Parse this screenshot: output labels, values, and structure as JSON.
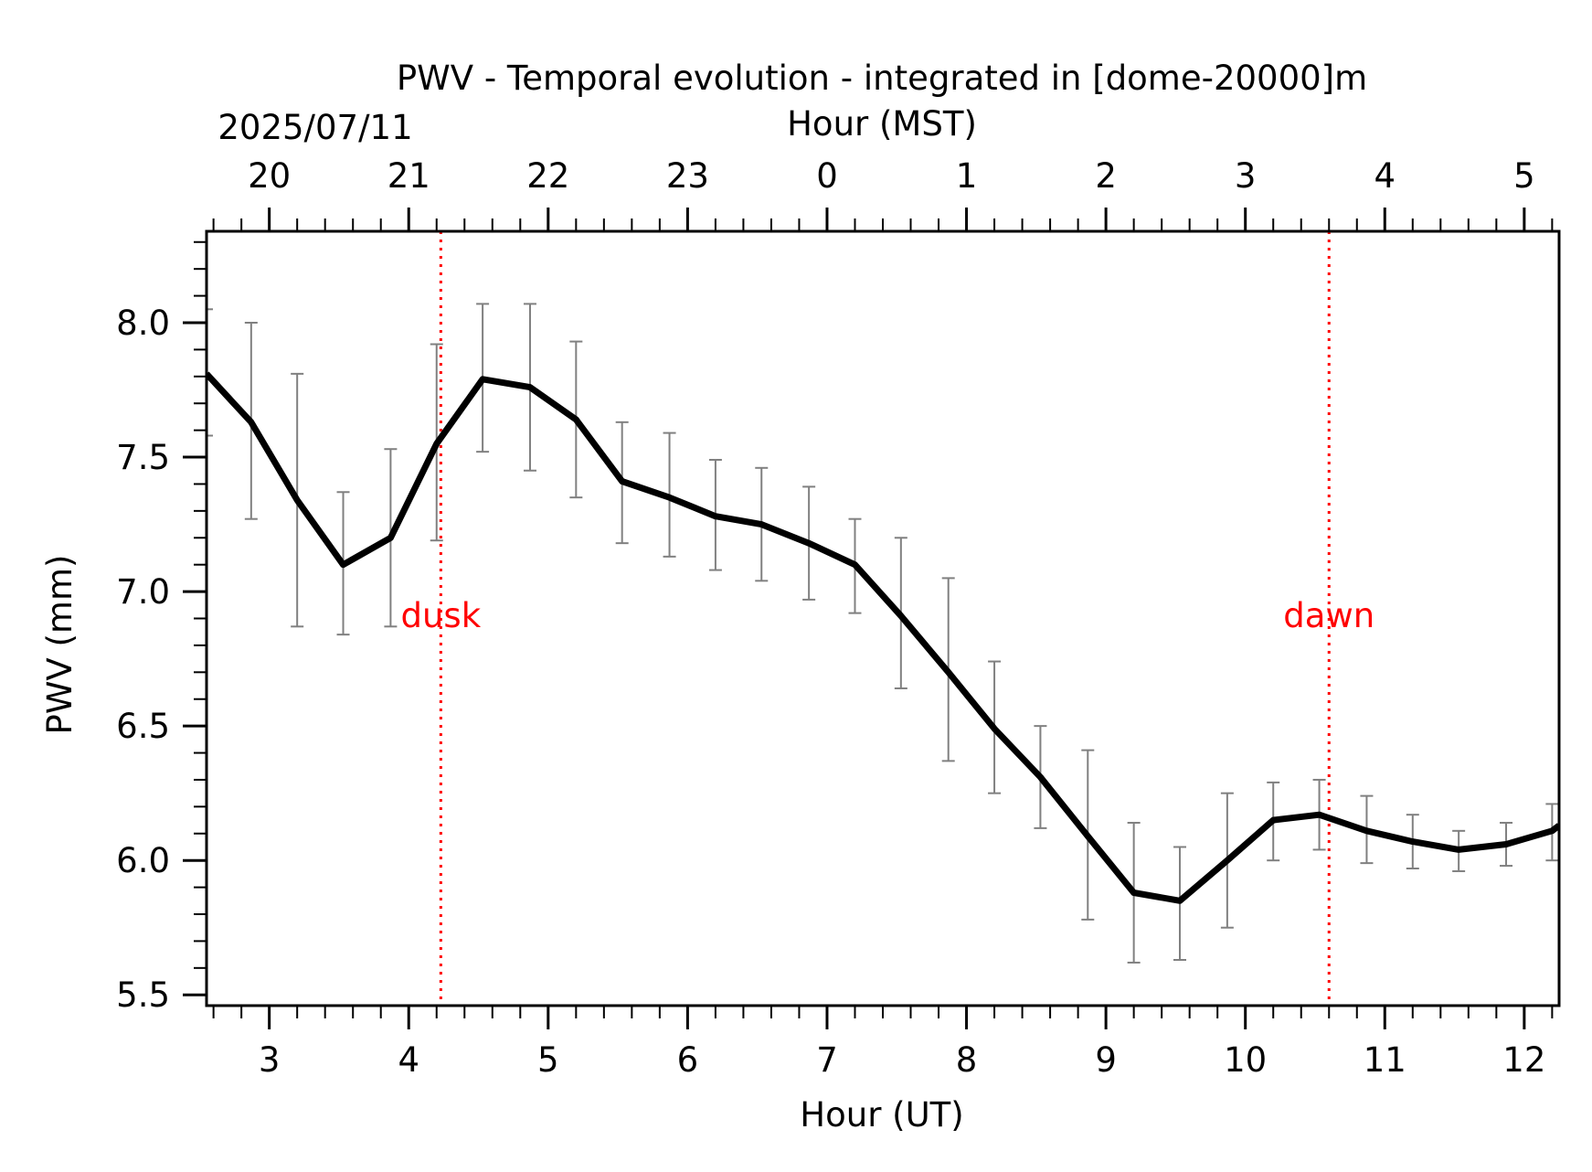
{
  "chart_data": {
    "type": "line",
    "title": "PWV - Temporal evolution - integrated in [dome-20000]m",
    "date_label": "2025/07/11",
    "xlabel": "Hour (UT)",
    "x2label": "Hour (MST)",
    "ylabel": "PWV (mm)",
    "xlim": [
      2.55,
      12.25
    ],
    "ylim": [
      5.46,
      8.34
    ],
    "x_ticks": [
      3,
      4,
      5,
      6,
      7,
      8,
      9,
      10,
      11,
      12
    ],
    "x_tick_labels": [
      "3",
      "4",
      "5",
      "6",
      "7",
      "8",
      "9",
      "10",
      "11",
      "12"
    ],
    "x2_tick_labels": [
      "20",
      "21",
      "22",
      "23",
      "0",
      "1",
      "2",
      "3",
      "4",
      "5"
    ],
    "y_ticks": [
      5.5,
      6.0,
      6.5,
      7.0,
      7.5,
      8.0
    ],
    "y_tick_labels": [
      "5.5",
      "6.0",
      "6.5",
      "7.0",
      "7.5",
      "8.0"
    ],
    "series": [
      {
        "color": "#000000",
        "error_color": "#808080",
        "x": [
          2.55,
          2.87,
          3.2,
          3.53,
          3.87,
          4.2,
          4.53,
          4.87,
          5.2,
          5.53,
          5.87,
          6.2,
          6.53,
          6.87,
          7.2,
          7.53,
          7.87,
          8.2,
          8.53,
          8.87,
          9.2,
          9.53,
          9.87,
          10.2,
          10.53,
          10.87,
          11.2,
          11.53,
          11.87,
          12.2,
          12.25
        ],
        "y": [
          7.81,
          7.63,
          7.34,
          7.1,
          7.2,
          7.55,
          7.79,
          7.76,
          7.64,
          7.41,
          7.35,
          7.28,
          7.25,
          7.18,
          7.1,
          6.91,
          6.7,
          6.49,
          6.31,
          6.09,
          5.88,
          5.85,
          6.0,
          6.15,
          6.17,
          6.11,
          6.07,
          6.04,
          6.06,
          6.11,
          6.13
        ],
        "err_x": [
          2.55,
          2.87,
          3.2,
          3.53,
          3.87,
          4.2,
          4.53,
          4.87,
          5.2,
          5.53,
          5.87,
          6.2,
          6.53,
          6.87,
          7.2,
          7.53,
          7.87,
          8.2,
          8.53,
          8.87,
          9.2,
          9.53,
          9.87,
          10.2,
          10.53,
          10.87,
          11.2,
          11.53,
          11.87,
          12.2
        ],
        "err_low": [
          7.58,
          7.27,
          6.87,
          6.84,
          6.87,
          7.19,
          7.52,
          7.45,
          7.35,
          7.18,
          7.13,
          7.08,
          7.04,
          6.97,
          6.92,
          6.64,
          6.37,
          6.25,
          6.12,
          5.78,
          5.62,
          5.63,
          5.75,
          6.0,
          6.04,
          5.99,
          5.97,
          5.96,
          5.98,
          6.0
        ],
        "err_high": [
          8.05,
          8.0,
          7.81,
          7.37,
          7.53,
          7.92,
          8.07,
          8.07,
          7.93,
          7.63,
          7.59,
          7.49,
          7.46,
          7.39,
          7.27,
          7.2,
          7.05,
          6.74,
          6.5,
          6.41,
          6.14,
          6.05,
          6.25,
          6.29,
          6.3,
          6.24,
          6.17,
          6.11,
          6.14,
          6.21
        ]
      }
    ],
    "events": [
      {
        "label": "dusk",
        "x": 4.23,
        "color": "#ff0000"
      },
      {
        "label": "dawn",
        "x": 10.6,
        "color": "#ff0000"
      }
    ],
    "grid": false,
    "legend": "none"
  }
}
